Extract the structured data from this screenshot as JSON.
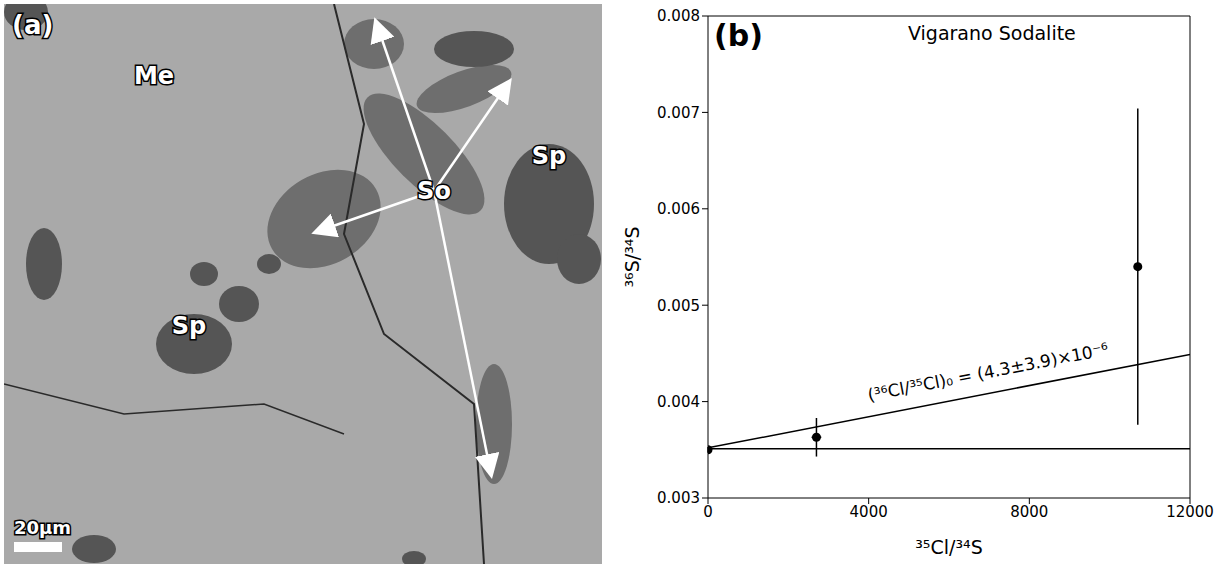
{
  "image_panel": {
    "label": "(a)",
    "texts": [
      "Me",
      "So",
      "Sp",
      "Sp"
    ],
    "scale_bar": "20μm"
  },
  "chart_data": {
    "type": "scatter",
    "panel_label": "(b)",
    "title": "Vigarano Sodalite",
    "x_label": "³⁵Cl/³⁴S",
    "y_label": "³⁶S/³⁴S",
    "annotation": "(³⁶Cl/³⁵Cl)₀ = (4.3±3.9)×10⁻⁶",
    "xlim": [
      0,
      12000
    ],
    "xticks": [
      0,
      4000,
      8000,
      12000
    ],
    "ylim": [
      0.003,
      0.008
    ],
    "yticks": [
      0.003,
      0.004,
      0.005,
      0.006,
      0.007,
      0.008
    ],
    "series": [
      {
        "type": "scatter",
        "color": "#000000",
        "marker": "circle",
        "x": [
          0,
          2700,
          10700
        ],
        "values": [
          0.0035,
          0.00363,
          0.0054
        ],
        "x_error": [
          0,
          120,
          0
        ],
        "y_error": [
          3e-05,
          0.0002,
          0.00164
        ]
      },
      {
        "type": "line",
        "color": "#000000",
        "line_style": "solid",
        "x": [
          0,
          12000
        ],
        "values": [
          0.00352,
          0.00449
        ]
      },
      {
        "type": "line",
        "color": "#000000",
        "line_style": "solid",
        "x": [
          0,
          12000
        ],
        "values": [
          0.00351,
          0.00351
        ]
      }
    ]
  }
}
